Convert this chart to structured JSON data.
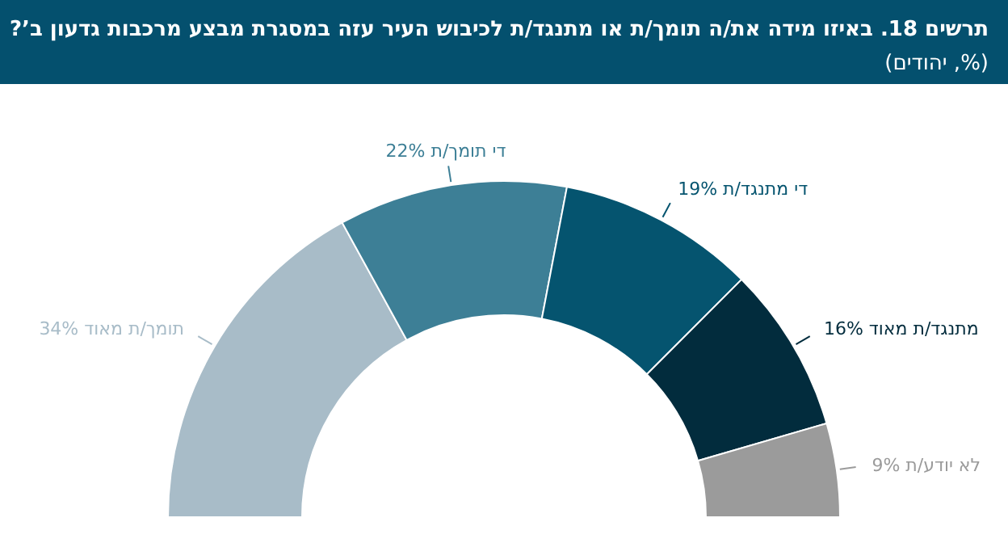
{
  "chart_data": {
    "type": "donut",
    "title": "תרשים 18. באיזו מידה את/ה תומך/ת או מתנגד/ת לכיבוש העיר עזה במסגרת מבצע מרכבות גדעון ב’?",
    "subtitle": "(%, יהודים)",
    "categories": [
      "תומך/ת מאוד",
      "די תומך/ת",
      "די מתנגד/ת",
      "מתנגד/ת מאוד",
      "לא יודע/ת"
    ],
    "values": [
      34,
      22,
      19,
      16,
      9
    ],
    "colors": [
      "#a8bcc8",
      "#3d7f96",
      "#05546f",
      "#022c3d",
      "#9b9b9b"
    ],
    "value_labels": [
      "34%",
      "22%",
      "19%",
      "16%",
      "9%"
    ]
  }
}
